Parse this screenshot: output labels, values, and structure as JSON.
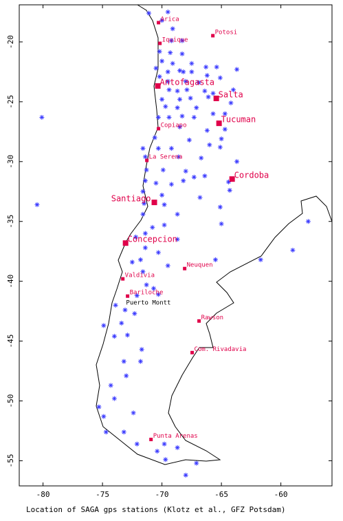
{
  "chart_data": {
    "type": "scatter",
    "caption": "Location of SAGA gps stations (Klotz et al., GFZ Potsdam)",
    "xlim": [
      -82.0,
      -55.7
    ],
    "ylim": [
      -57.1,
      -16.9
    ],
    "xticks": [
      -80,
      -75,
      -70,
      -65,
      -60
    ],
    "yticks": [
      -20,
      -25,
      -30,
      -35,
      -40,
      -45,
      -50,
      -55
    ],
    "series": [
      {
        "color": "#3a3aff",
        "x": [
          -71.1,
          -70.0,
          -69.5,
          -69.1,
          -70.2,
          -69.2,
          -68.3,
          -69.3,
          -68.3,
          -70.0,
          -69.1,
          -70.5,
          -68.5,
          -67.5,
          -66.3,
          -65.4,
          -63.7,
          -70.2,
          -69.5,
          -68.2,
          -67.5,
          -66.2,
          -65.1,
          -69.5,
          -68.0,
          -66.9,
          -64.0,
          -69.4,
          -68.7,
          -67.9,
          -66.4,
          -65.7,
          -70.0,
          -68.5,
          -67.6,
          -66.1,
          -69.7,
          -68.7,
          -67.1,
          -64.2,
          -70.3,
          -69.4,
          -68.3,
          -67.3,
          -65.7,
          -64.7,
          -68.5,
          -66.2,
          -64.7,
          -80.1,
          -70.6,
          -67.7,
          -65.0,
          -70.3,
          -71.6,
          -69.2,
          -66.0,
          -65.1,
          -71.4,
          -68.6,
          -66.7,
          -63.7,
          -71.3,
          -69.9,
          -68.0,
          -66.4,
          -71.4,
          -70.5,
          -69.2,
          -68.2,
          -67.3,
          -64.4,
          -64.3,
          -71.6,
          -70.0,
          -66.8,
          -80.5,
          -71.5,
          -69.8,
          -65.1,
          -71.6,
          -68.7,
          -65.0,
          -70.8,
          -69.8,
          -71.4,
          -72.2,
          -68.7,
          -71.4,
          -71.8,
          -72.5,
          -70.3,
          -65.5,
          -61.7,
          -59.0,
          -57.7,
          -71.6,
          -69.5,
          -71.3,
          -70.7,
          -72.1,
          -70.3,
          -73.9,
          -73.1,
          -72.3,
          -74.9,
          -73.4,
          -74.0,
          -72.9,
          -71.7,
          -73.2,
          -71.8,
          -73.0,
          -74.3,
          -74.0,
          -75.3,
          -74.9,
          -72.4,
          -74.7,
          -73.2,
          -72.1,
          -69.8,
          -70.4,
          -68.7,
          -67.1,
          -68.0,
          -69.7
        ],
        "y": [
          -17.6,
          -18.2,
          -17.5,
          -18.9,
          -20.8,
          -19.9,
          -19.9,
          -20.9,
          -21.0,
          -21.6,
          -21.8,
          -22.2,
          -22.4,
          -21.8,
          -22.1,
          -22.1,
          -22.3,
          -22.9,
          -22.5,
          -22.5,
          -22.5,
          -22.8,
          -23.0,
          -23.3,
          -23.3,
          -23.4,
          -24.0,
          -24.0,
          -24.1,
          -24.0,
          -24.1,
          -24.3,
          -24.8,
          -24.8,
          -24.7,
          -24.6,
          -25.4,
          -25.5,
          -25.5,
          -25.1,
          -26.3,
          -26.3,
          -26.2,
          -26.3,
          -26.0,
          -26.0,
          -27.1,
          -27.4,
          -27.3,
          -26.3,
          -28.0,
          -28.2,
          -28.1,
          -28.9,
          -28.9,
          -28.9,
          -28.6,
          -28.8,
          -29.6,
          -29.6,
          -29.7,
          -30.0,
          -30.7,
          -30.7,
          -30.8,
          -31.2,
          -31.6,
          -31.8,
          -31.9,
          -31.6,
          -31.3,
          -31.7,
          -32.4,
          -32.5,
          -32.8,
          -33.0,
          -33.6,
          -33.5,
          -33.6,
          -33.8,
          -34.4,
          -34.4,
          -35.2,
          -35.5,
          -35.3,
          -36.0,
          -36.3,
          -36.5,
          -37.2,
          -38.2,
          -38.4,
          -37.6,
          -38.2,
          -38.2,
          -37.4,
          -35.0,
          -39.2,
          -38.7,
          -40.3,
          -40.6,
          -41.2,
          -41.1,
          -42.0,
          -42.4,
          -42.7,
          -43.7,
          -43.5,
          -44.6,
          -44.5,
          -45.7,
          -46.7,
          -46.7,
          -47.9,
          -48.7,
          -49.8,
          -50.5,
          -51.3,
          -51.0,
          -52.6,
          -52.6,
          -53.6,
          -53.6,
          -54.2,
          -53.9,
          -55.2,
          -56.2,
          -54.9
        ]
      }
    ],
    "cities": [
      {
        "name": "Arica",
        "lon": -70.29,
        "lat": -18.39
      },
      {
        "name": "Potosi",
        "lon": -65.72,
        "lat": -19.48
      },
      {
        "name": "Iquique",
        "lon": -70.17,
        "lat": -20.12
      },
      {
        "name": "Antofagasta",
        "lon": -70.35,
        "lat": -23.68
      },
      {
        "name": "Salta",
        "lon": -65.43,
        "lat": -24.72
      },
      {
        "name": "Tucuman",
        "lon": -65.2,
        "lat": -26.8
      },
      {
        "name": "Copiapo",
        "lon": -70.29,
        "lat": -27.25
      },
      {
        "name": "La Serena",
        "lon": -71.27,
        "lat": -29.9
      },
      {
        "name": "Cordoba",
        "lon": -64.1,
        "lat": -31.46
      },
      {
        "name": "Santiago",
        "lon": -70.64,
        "lat": -33.41
      },
      {
        "name": "Concepcion",
        "lon": -73.06,
        "lat": -36.81
      },
      {
        "name": "Neuquen",
        "lon": -68.09,
        "lat": -38.94
      },
      {
        "name": "Valdivia",
        "lon": -73.29,
        "lat": -39.8
      },
      {
        "name": "Bariloche",
        "lon": -72.89,
        "lat": -41.24
      },
      {
        "name": "Rawson",
        "lon": -66.88,
        "lat": -43.32
      },
      {
        "name": "Com. Rivadavia",
        "lon": -67.46,
        "lat": -45.96
      },
      {
        "name": "Punta Arenas",
        "lon": -70.92,
        "lat": -53.22
      }
    ],
    "place_labels": [
      {
        "text": "Puerto Montt",
        "lon": -72.9,
        "lat": -41.8
      }
    ]
  }
}
